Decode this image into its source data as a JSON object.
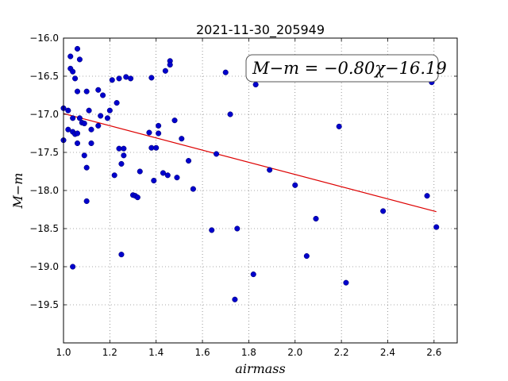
{
  "chart_data": {
    "type": "scatter",
    "title": "2021-11-30_205949",
    "xlabel": "airmass",
    "ylabel": "M−m",
    "xlim": [
      1.0,
      2.7
    ],
    "ylim": [
      -20.0,
      -16.0
    ],
    "y_inverted": true,
    "grid": true,
    "xticks": [
      1.0,
      1.2,
      1.4,
      1.6,
      1.8,
      2.0,
      2.2,
      2.4,
      2.6
    ],
    "xtick_labels": [
      "1.0",
      "1.2",
      "1.4",
      "1.6",
      "1.8",
      "2.0",
      "2.2",
      "2.4",
      "2.6"
    ],
    "yticks": [
      -16.0,
      -16.5,
      -17.0,
      -17.5,
      -18.0,
      -18.5,
      -19.0,
      -19.5
    ],
    "ytick_labels": [
      "−16.0",
      "−16.5",
      "−17.0",
      "−17.5",
      "−18.0",
      "−18.5",
      "−19.0",
      "−19.5"
    ],
    "point_color": "#0000cc",
    "fit_color": "#dd0000",
    "fit": {
      "slope": -0.8,
      "intercept": -16.19,
      "x": [
        1.0,
        2.61
      ]
    },
    "annotation": "M−m = −0.80χ−16.19",
    "points": [
      {
        "x": 1.0,
        "y": -16.92
      },
      {
        "x": 1.0,
        "y": -17.34
      },
      {
        "x": 1.02,
        "y": -16.95
      },
      {
        "x": 1.02,
        "y": -17.2
      },
      {
        "x": 1.03,
        "y": -16.24
      },
      {
        "x": 1.03,
        "y": -16.4
      },
      {
        "x": 1.04,
        "y": -16.44
      },
      {
        "x": 1.04,
        "y": -17.05
      },
      {
        "x": 1.04,
        "y": -17.23
      },
      {
        "x": 1.04,
        "y": -19.0
      },
      {
        "x": 1.05,
        "y": -16.53
      },
      {
        "x": 1.05,
        "y": -17.26
      },
      {
        "x": 1.06,
        "y": -16.14
      },
      {
        "x": 1.06,
        "y": -16.7
      },
      {
        "x": 1.06,
        "y": -17.25
      },
      {
        "x": 1.06,
        "y": -17.38
      },
      {
        "x": 1.07,
        "y": -16.28
      },
      {
        "x": 1.07,
        "y": -17.05
      },
      {
        "x": 1.08,
        "y": -17.11
      },
      {
        "x": 1.09,
        "y": -17.12
      },
      {
        "x": 1.09,
        "y": -17.54
      },
      {
        "x": 1.1,
        "y": -16.7
      },
      {
        "x": 1.1,
        "y": -17.7
      },
      {
        "x": 1.1,
        "y": -18.14
      },
      {
        "x": 1.11,
        "y": -16.95
      },
      {
        "x": 1.12,
        "y": -17.2
      },
      {
        "x": 1.12,
        "y": -17.38
      },
      {
        "x": 1.15,
        "y": -16.68
      },
      {
        "x": 1.15,
        "y": -17.15
      },
      {
        "x": 1.16,
        "y": -17.02
      },
      {
        "x": 1.17,
        "y": -16.75
      },
      {
        "x": 1.19,
        "y": -17.05
      },
      {
        "x": 1.2,
        "y": -16.95
      },
      {
        "x": 1.21,
        "y": -16.55
      },
      {
        "x": 1.22,
        "y": -17.8
      },
      {
        "x": 1.23,
        "y": -16.85
      },
      {
        "x": 1.24,
        "y": -16.53
      },
      {
        "x": 1.24,
        "y": -17.45
      },
      {
        "x": 1.25,
        "y": -17.65
      },
      {
        "x": 1.25,
        "y": -18.84
      },
      {
        "x": 1.26,
        "y": -17.45
      },
      {
        "x": 1.26,
        "y": -17.54
      },
      {
        "x": 1.27,
        "y": -16.51
      },
      {
        "x": 1.29,
        "y": -16.53
      },
      {
        "x": 1.3,
        "y": -18.06
      },
      {
        "x": 1.31,
        "y": -18.07
      },
      {
        "x": 1.32,
        "y": -18.09
      },
      {
        "x": 1.33,
        "y": -17.75
      },
      {
        "x": 1.37,
        "y": -17.24
      },
      {
        "x": 1.38,
        "y": -16.52
      },
      {
        "x": 1.38,
        "y": -17.44
      },
      {
        "x": 1.39,
        "y": -17.87
      },
      {
        "x": 1.4,
        "y": -17.44
      },
      {
        "x": 1.41,
        "y": -17.15
      },
      {
        "x": 1.41,
        "y": -17.25
      },
      {
        "x": 1.43,
        "y": -17.77
      },
      {
        "x": 1.44,
        "y": -16.43
      },
      {
        "x": 1.45,
        "y": -17.8
      },
      {
        "x": 1.46,
        "y": -16.3
      },
      {
        "x": 1.46,
        "y": -16.35
      },
      {
        "x": 1.48,
        "y": -17.08
      },
      {
        "x": 1.49,
        "y": -17.83
      },
      {
        "x": 1.51,
        "y": -17.32
      },
      {
        "x": 1.54,
        "y": -17.61
      },
      {
        "x": 1.56,
        "y": -17.98
      },
      {
        "x": 1.64,
        "y": -18.52
      },
      {
        "x": 1.66,
        "y": -17.52
      },
      {
        "x": 1.7,
        "y": -16.45
      },
      {
        "x": 1.72,
        "y": -17.0
      },
      {
        "x": 1.74,
        "y": -19.43
      },
      {
        "x": 1.75,
        "y": -18.5
      },
      {
        "x": 1.82,
        "y": -19.1
      },
      {
        "x": 1.83,
        "y": -16.61
      },
      {
        "x": 1.89,
        "y": -17.73
      },
      {
        "x": 2.0,
        "y": -17.93
      },
      {
        "x": 2.05,
        "y": -18.86
      },
      {
        "x": 2.09,
        "y": -18.37
      },
      {
        "x": 2.19,
        "y": -17.16
      },
      {
        "x": 2.22,
        "y": -19.21
      },
      {
        "x": 2.38,
        "y": -18.27
      },
      {
        "x": 2.57,
        "y": -18.07
      },
      {
        "x": 2.59,
        "y": -16.58
      },
      {
        "x": 2.61,
        "y": -18.48
      }
    ]
  }
}
